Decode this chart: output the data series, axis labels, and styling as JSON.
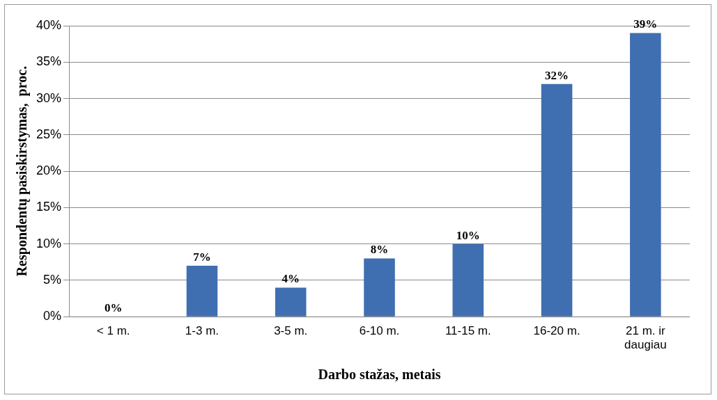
{
  "chart_data": {
    "type": "bar",
    "xlabel": "Darbo stažas, metais",
    "ylabel": "Respondentų pasiskirstymas,  proc.",
    "categories": [
      "< 1 m.",
      "1-3 m.",
      "3-5 m.",
      "6-10 m.",
      "11-15 m.",
      "16-20 m.",
      "21 m. ir daugiau"
    ],
    "values": [
      0,
      7,
      4,
      8,
      10,
      32,
      39
    ],
    "color": "#3f6fb0",
    "value_labels": [
      "0%",
      "7%",
      "4%",
      "8%",
      "10%",
      "32%",
      "39%"
    ],
    "ylim": [
      0,
      40
    ],
    "yticks": [
      {
        "value": 0,
        "label": "0%"
      },
      {
        "value": 5,
        "label": "5%"
      },
      {
        "value": 10,
        "label": "10%"
      },
      {
        "value": 15,
        "label": "15%"
      },
      {
        "value": 20,
        "label": "20%"
      },
      {
        "value": 25,
        "label": "25%"
      },
      {
        "value": 30,
        "label": "30%"
      },
      {
        "value": 35,
        "label": "35%"
      },
      {
        "value": 40,
        "label": "40%"
      }
    ],
    "grid": "y",
    "legend": false
  }
}
